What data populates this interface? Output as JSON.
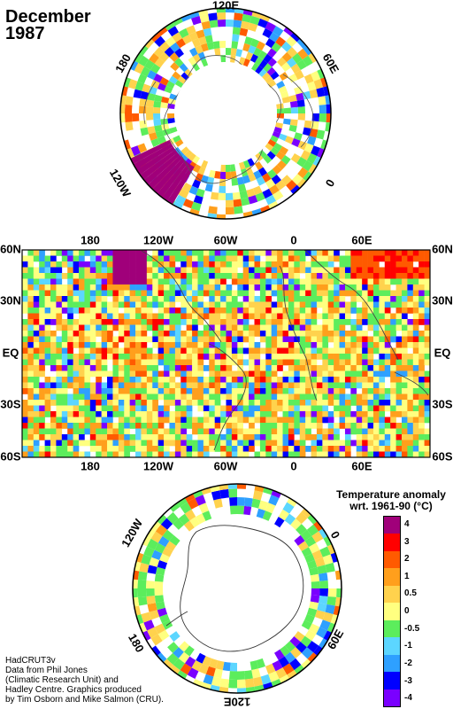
{
  "title": {
    "line1": "December",
    "line2": "1987"
  },
  "map": {
    "top_labels": [
      "180",
      "120W",
      "60W",
      "0",
      "60E"
    ],
    "bottom_labels": [
      "180",
      "120W",
      "60W",
      "0",
      "60E"
    ],
    "lat_labels": [
      "60N",
      "30N",
      "EQ",
      "30S",
      "60S"
    ]
  },
  "north_pole": {
    "labels": [
      "120E",
      "60E",
      "0",
      "120W",
      "180"
    ]
  },
  "south_pole": {
    "labels": [
      "120W",
      "0",
      "60E",
      "120E",
      "180"
    ]
  },
  "legend": {
    "title_line1": "Temperature anomaly",
    "title_line2": "wrt. 1961-90  (°C)",
    "ticks": [
      "4",
      "3",
      "2",
      "1",
      "0.5",
      "0",
      "-0.5",
      "-1",
      "-2",
      "-3",
      "-4"
    ],
    "colors": [
      "#a0007a",
      "#ff0000",
      "#ff5a00",
      "#ff9f1c",
      "#ffd24d",
      "#ffff80",
      "#5ced5c",
      "#5cd6ff",
      "#2ea0ff",
      "#0000ff",
      "#7a00ff"
    ]
  },
  "credits": [
    "HadCRUT3v",
    "Data from Phil Jones",
    "(Climatic Research Unit) and",
    "Hadley Centre.  Graphics produced",
    "by Tim Osborn and Mike Salmon (CRU)."
  ]
}
